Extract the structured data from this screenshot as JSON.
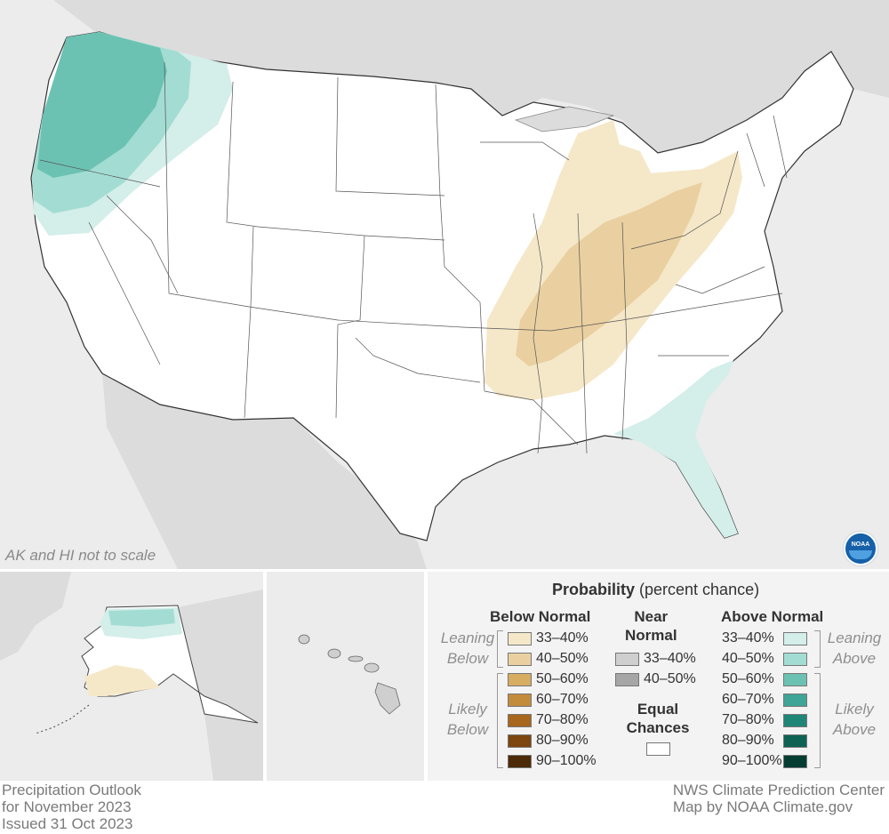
{
  "map": {
    "scale_note": "AK and HI not to scale",
    "colors": {
      "background": "#ececec",
      "land": "#ffffff",
      "neighbor_land": "#dcdcdc",
      "below_33_40": "#f5e8c9",
      "below_40_50": "#ead0a0",
      "above_33_40": "#d4eeea",
      "above_40_50": "#a3dcd2",
      "above_50_60": "#6cc2b2"
    },
    "logo": "NOAA",
    "logo_icon": "noaa-logo-icon"
  },
  "legend": {
    "title_bold": "Probability",
    "title_rest": " (percent chance)",
    "below_header": "Below Normal",
    "near_header_line1": "Near",
    "near_header_line2": "Normal",
    "above_header": "Above Normal",
    "leaning_below_1": "Leaning",
    "leaning_below_2": "Below",
    "likely_below_1": "Likely",
    "likely_below_2": "Below",
    "leaning_above_1": "Leaning",
    "leaning_above_2": "Above",
    "likely_above_1": "Likely",
    "likely_above_2": "Above",
    "equal_1": "Equal",
    "equal_2": "Chances",
    "below": [
      {
        "label": "33–40%",
        "color": "#f5e8c9"
      },
      {
        "label": "40–50%",
        "color": "#ead0a0"
      },
      {
        "label": "50–60%",
        "color": "#d7ad62"
      },
      {
        "label": "60–70%",
        "color": "#c38c3d"
      },
      {
        "label": "70–80%",
        "color": "#a8661f"
      },
      {
        "label": "80–90%",
        "color": "#7d4510"
      },
      {
        "label": "90–100%",
        "color": "#4d2a08"
      }
    ],
    "near": [
      {
        "label": "33–40%",
        "color": "#cfcfcf"
      },
      {
        "label": "40–50%",
        "color": "#a6a6a6"
      }
    ],
    "above": [
      {
        "label": "33–40%",
        "color": "#d4eeea"
      },
      {
        "label": "40–50%",
        "color": "#a3dcd2"
      },
      {
        "label": "50–60%",
        "color": "#6cc2b2"
      },
      {
        "label": "60–70%",
        "color": "#3fa596"
      },
      {
        "label": "70–80%",
        "color": "#1f8577"
      },
      {
        "label": "80–90%",
        "color": "#0d6253"
      },
      {
        "label": "90–100%",
        "color": "#063d33"
      }
    ],
    "equal_color": "#ffffff"
  },
  "footer": {
    "left_1": "Precipitation Outlook",
    "left_2": "for November 2023",
    "left_3": "Issued 31 Oct 2023",
    "right_1": "NWS Climate Prediction Center",
    "right_2": "Map by NOAA Climate.gov"
  }
}
